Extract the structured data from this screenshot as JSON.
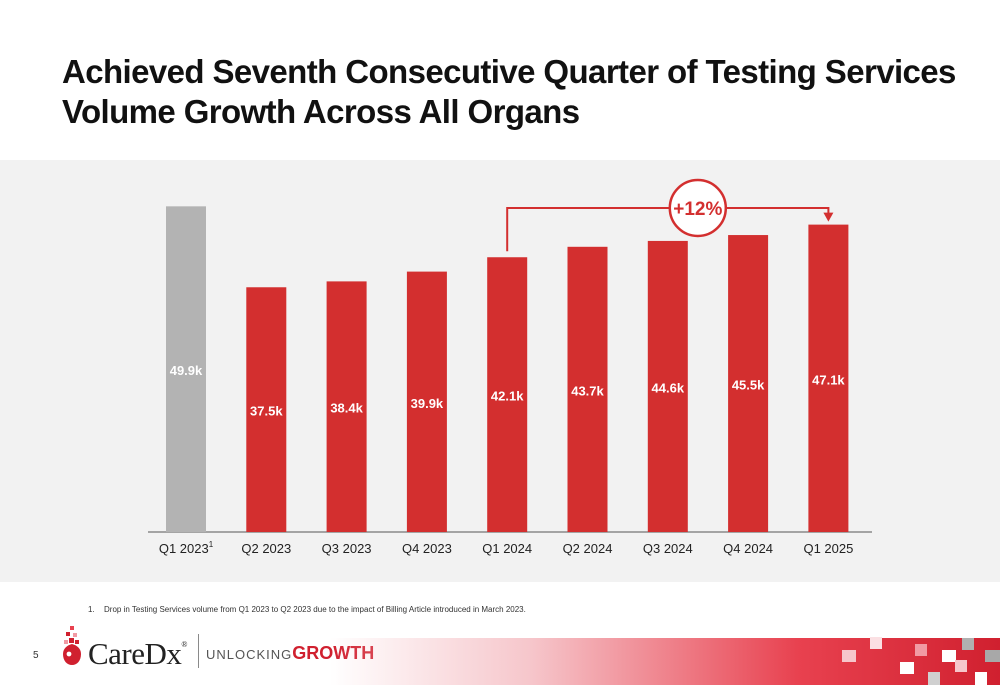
{
  "title": "Achieved Seventh Consecutive Quarter of Testing Services Volume Growth Across All Organs",
  "chart_data": {
    "type": "bar",
    "categories": [
      "Q1 2023",
      "Q2 2023",
      "Q3 2023",
      "Q4 2023",
      "Q1 2024",
      "Q2 2024",
      "Q3 2024",
      "Q4 2024",
      "Q1 2025"
    ],
    "category_superscripts": [
      "1",
      "",
      "",
      "",
      "",
      "",
      "",
      "",
      ""
    ],
    "values": [
      49.9,
      37.5,
      38.4,
      39.9,
      42.1,
      43.7,
      44.6,
      45.5,
      47.1
    ],
    "value_labels": [
      "49.9k",
      "37.5k",
      "38.4k",
      "39.9k",
      "42.1k",
      "43.7k",
      "44.6k",
      "45.5k",
      "47.1k"
    ],
    "bar_colors": [
      "#b3b3b3",
      "#d32f2f",
      "#d32f2f",
      "#d32f2f",
      "#d32f2f",
      "#d32f2f",
      "#d32f2f",
      "#d32f2f",
      "#d32f2f"
    ],
    "ylim": [
      0,
      57
    ],
    "grid": false,
    "annotation": {
      "text": "+12%",
      "from": "Q1 2024",
      "to": "Q1 2025",
      "color": "#d32f2f"
    }
  },
  "footnote": {
    "number": "1.",
    "text": "Drop in Testing Services volume from Q1 2023 to Q2 2023 due to the impact of Billing Article introduced in March 2023."
  },
  "page_number": "5",
  "logo": {
    "brand": "CareDx",
    "mark": "®",
    "tagline_light": "UNLOCKING",
    "tagline_bold": "GROWTH"
  }
}
